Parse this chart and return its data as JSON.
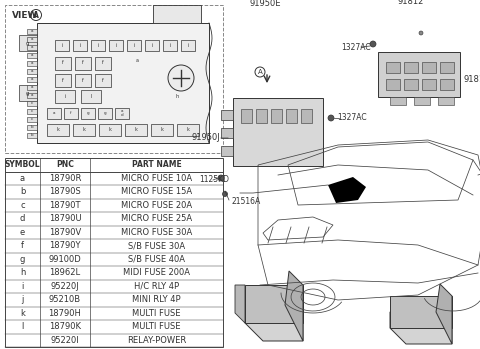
{
  "background_color": "#ffffff",
  "line_color": "#333333",
  "table_line_color": "#444444",
  "font_size_table": 6.0,
  "font_size_labels": 5.5,
  "table_data": {
    "headers": [
      "SYMBOL",
      "PNC",
      "PART NAME"
    ],
    "rows": [
      [
        "a",
        "18790R",
        "MICRO FUSE 10A"
      ],
      [
        "b",
        "18790S",
        "MICRO FUSE 15A"
      ],
      [
        "c",
        "18790T",
        "MICRO FUSE 20A"
      ],
      [
        "d",
        "18790U",
        "MICRO FUSE 25A"
      ],
      [
        "e",
        "18790V",
        "MICRO FUSE 30A"
      ],
      [
        "f",
        "18790Y",
        "S/B FUSE 30A"
      ],
      [
        "g",
        "99100D",
        "S/B FUSE 40A"
      ],
      [
        "h",
        "18962L",
        "MIDI FUSE 200A"
      ],
      [
        "i",
        "95220J",
        "H/C RLY 4P"
      ],
      [
        "j",
        "95210B",
        "MINI RLY 4P"
      ],
      [
        "k",
        "18790H",
        "MULTI FUSE"
      ],
      [
        "l",
        "18790K",
        "MULTI FUSE"
      ],
      [
        "",
        "95220I",
        "RELAY-POWER"
      ]
    ]
  }
}
